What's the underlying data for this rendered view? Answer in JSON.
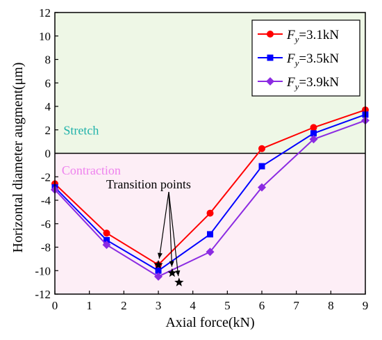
{
  "chart_data": {
    "type": "line",
    "xlabel": "Axial force(kN)",
    "ylabel": "Horizontal diameter augment(μm)",
    "xlim": [
      0,
      9
    ],
    "ylim": [
      -12,
      12
    ],
    "xticks": [
      0,
      1,
      2,
      3,
      4,
      5,
      6,
      7,
      8,
      9
    ],
    "yticks": [
      -12,
      -10,
      -8,
      -6,
      -4,
      -2,
      0,
      2,
      4,
      6,
      8,
      10,
      12
    ],
    "x": [
      0,
      1.5,
      3,
      4.5,
      6,
      7.5,
      9
    ],
    "series": [
      {
        "name": "Fy=3.1kN",
        "name_main": "F",
        "name_sub": "y",
        "name_value": "=3.1kN",
        "color": "#ff0000",
        "marker": "circle",
        "values": [
          -2.6,
          -6.8,
          -9.5,
          -5.1,
          0.4,
          2.2,
          3.7
        ]
      },
      {
        "name": "Fy=3.5kN",
        "name_main": "F",
        "name_sub": "y",
        "name_value": "=3.5kN",
        "color": "#0000ff",
        "marker": "square",
        "values": [
          -2.9,
          -7.4,
          -10.0,
          -6.9,
          -1.1,
          1.7,
          3.3
        ]
      },
      {
        "name": "Fy=3.9kN",
        "name_main": "F",
        "name_sub": "y",
        "name_value": "=3.9kN",
        "color": "#8b2be2",
        "marker": "diamond",
        "values": [
          -3.1,
          -7.8,
          -10.5,
          -8.4,
          -2.9,
          1.2,
          2.8
        ]
      }
    ],
    "transition_points": [
      {
        "x": 3.0,
        "y": -9.5
      },
      {
        "x": 3.4,
        "y": -10.2
      },
      {
        "x": 3.6,
        "y": -11.0
      }
    ],
    "regions": {
      "stretch_label": "Stretch",
      "stretch_color": "#eef7e6",
      "stretch_text_color": "#20b2aa",
      "contraction_label": "Contraction",
      "contraction_color": "#fdeef6",
      "contraction_text_color": "#ee82ee"
    },
    "annotation": "Transition points",
    "legend_position": "top-right",
    "grid": false
  }
}
